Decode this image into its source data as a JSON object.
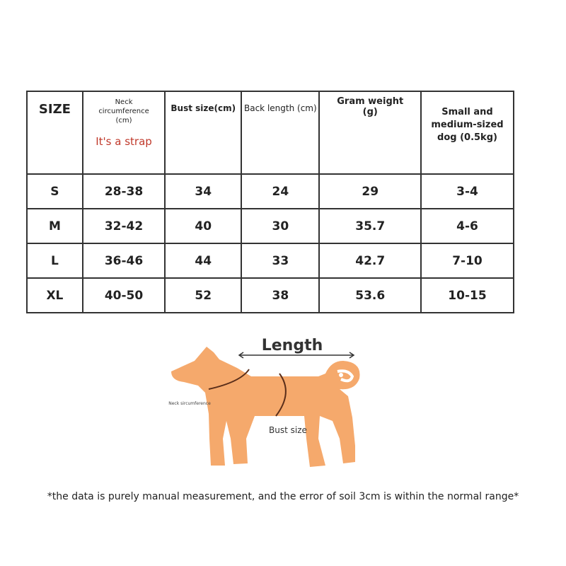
{
  "table": {
    "headers": {
      "size": "SIZE",
      "neck": "Neck circumference (cm)",
      "neck_note": "It's a strap",
      "bust": "Bust size(cm)",
      "back": "Back length (cm)",
      "weight": "Gram weight (g)",
      "dog": "Small and medium-sized dog (0.5kg)"
    },
    "rows": [
      [
        "S",
        "28-38",
        "34",
        "24",
        "29",
        "3-4"
      ],
      [
        "M",
        "32-42",
        "40",
        "30",
        "35.7",
        "4-6"
      ],
      [
        "L",
        "36-46",
        "44",
        "33",
        "42.7",
        "7-10"
      ],
      [
        "XL",
        "40-50",
        "52",
        "38",
        "53.6",
        "10-15"
      ]
    ]
  },
  "diagram": {
    "length_label": "Length",
    "neck_label": "Neck sircumference",
    "bust_label": "Bust size",
    "dog_color": "#F5A96C"
  },
  "footnote": "*the data is purely manual measurement, and the error of soil 3cm is within the normal range*"
}
